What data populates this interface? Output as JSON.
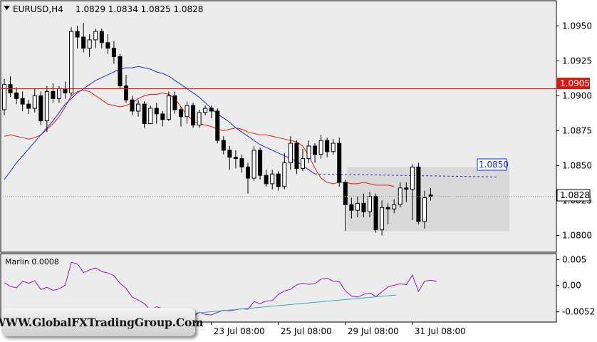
{
  "header": {
    "symbol_tf": "EURUSD,H4",
    "ohlc": "1.0829 1.0834 1.0825 1.0828"
  },
  "indicator": {
    "label": "Marlin 0.0008"
  },
  "price_badges": {
    "resistance": "1.0905",
    "target": "1.0850",
    "last": "1.0828"
  },
  "watermark": "WWW.GlobalFXTradingGroup.Com",
  "colors": {
    "chart_bg": "#ececec",
    "ma_red": "#dd1c1c",
    "ma_blue": "#1a2ec8",
    "oscillator": "#8b1fb0",
    "trendline": "#3fa7a3",
    "level_red": "#e8140c",
    "last_badge_bg": "#ffffff",
    "target_badge_border": "#1a2ec8"
  },
  "chart_data": [
    {
      "type": "candlestick",
      "title": "EURUSD,H4",
      "price_axis_ticks": [
        "1.0950",
        "1.0925",
        "1.0900",
        "1.0875",
        "1.0850",
        "1.0825",
        "1.0800"
      ],
      "time_axis_ticks": [
        "23 Jul 08:00",
        "25 Jul 08:00",
        "29 Jul 08:00",
        "31 Jul 08:00"
      ],
      "ylim": [
        1.0788,
        1.0968
      ],
      "horizontal_level": 1.0905,
      "last_price": 1.0828,
      "target_level": 1.085,
      "range_box": {
        "price_top": 1.0849,
        "price_bottom": 1.0803
      },
      "grid": false,
      "series": [
        {
          "name": "red MA",
          "color": "#dd1c1c",
          "values": [
            1.0871,
            1.0872,
            1.0871,
            1.087,
            1.0869,
            1.087,
            1.0872,
            1.0876,
            1.088,
            1.0885,
            1.0892,
            1.09,
            1.0903,
            1.0904,
            1.0903,
            1.09,
            1.0897,
            1.0894,
            1.0893,
            1.0892,
            1.0893,
            1.0895,
            1.0898,
            1.09,
            1.0901,
            1.0901,
            1.0902,
            1.0901,
            1.0898,
            1.0892,
            1.0886,
            1.0882,
            1.088,
            1.0879,
            1.0878,
            1.0876,
            1.0875,
            1.0876,
            1.0877,
            1.0876,
            1.0874,
            1.0873,
            1.0872,
            1.0872,
            1.0871,
            1.087,
            1.0869,
            1.0868,
            1.0867,
            1.0864,
            1.0857,
            1.0848,
            1.0841,
            1.0838,
            1.0837,
            1.0838,
            1.0838,
            1.0837,
            1.0837,
            1.0838,
            1.0837,
            1.0836,
            1.0836,
            1.0836,
            1.0835
          ]
        },
        {
          "name": "blue MA",
          "color": "#1a2ec8",
          "values": [
            1.084,
            1.0846,
            1.0852,
            1.0857,
            1.0862,
            1.0867,
            1.0872,
            1.0877,
            1.0882,
            1.0888,
            1.0894,
            1.0898,
            1.0902,
            1.0905,
            1.0908,
            1.0911,
            1.0913,
            1.0915,
            1.0917,
            1.0919,
            1.092,
            1.092,
            1.0921,
            1.092,
            1.0919,
            1.0917,
            1.0916,
            1.0914,
            1.0911,
            1.0908,
            1.0905,
            1.0902,
            1.0899,
            1.0895,
            1.0891,
            1.0887,
            1.0884,
            1.0881,
            1.0877,
            1.0874,
            1.0871,
            1.0868,
            1.0865,
            1.0863,
            1.0861,
            1.0859,
            1.0857,
            1.0855,
            1.0853,
            1.085,
            1.0847,
            1.0844
          ]
        }
      ],
      "candles": [
        [
          1.089,
          1.0908,
          1.0912,
          1.0886
        ],
        [
          1.0908,
          1.0902,
          1.0914,
          1.0899
        ],
        [
          1.0902,
          1.0898,
          1.0906,
          1.0894
        ],
        [
          1.0898,
          1.0894,
          1.0903,
          1.0889
        ],
        [
          1.0894,
          1.0891,
          1.0897,
          1.0887
        ],
        [
          1.0891,
          1.09,
          1.0905,
          1.0888
        ],
        [
          1.09,
          1.0882,
          1.0903,
          1.0879
        ],
        [
          1.0882,
          1.0903,
          1.0907,
          1.0874
        ],
        [
          1.0903,
          1.0898,
          1.0909,
          1.0895
        ],
        [
          1.0898,
          1.0905,
          1.0907,
          1.0895
        ],
        [
          1.0905,
          1.0902,
          1.091,
          1.0898
        ],
        [
          1.0902,
          1.0946,
          1.0949,
          1.09
        ],
        [
          1.0946,
          1.0942,
          1.095,
          1.0934
        ],
        [
          1.0942,
          1.0934,
          1.0952,
          1.0931
        ],
        [
          1.0934,
          1.094,
          1.0944,
          1.0928
        ],
        [
          1.094,
          1.0946,
          1.0948,
          1.0934
        ],
        [
          1.0946,
          1.0938,
          1.0948,
          1.0934
        ],
        [
          1.0938,
          1.0934,
          1.0944,
          1.093
        ],
        [
          1.0934,
          1.0928,
          1.0939,
          1.0923
        ],
        [
          1.0928,
          1.0907,
          1.093,
          1.0905
        ],
        [
          1.0907,
          1.0897,
          1.0915,
          1.0895
        ],
        [
          1.0897,
          1.0889,
          1.09,
          1.0886
        ],
        [
          1.0889,
          1.0894,
          1.0897,
          1.0885
        ],
        [
          1.0894,
          1.088,
          1.0896,
          1.0877
        ],
        [
          1.088,
          1.0891,
          1.0893,
          1.088
        ],
        [
          1.0891,
          1.0887,
          1.0895,
          1.088
        ],
        [
          1.0887,
          1.0883,
          1.0889,
          1.0878
        ],
        [
          1.0883,
          1.09,
          1.0903,
          1.0882
        ],
        [
          1.09,
          1.089,
          1.0903,
          1.0887
        ],
        [
          1.089,
          1.0885,
          1.0892,
          1.0878
        ],
        [
          1.0885,
          1.0893,
          1.0896,
          1.088
        ],
        [
          1.0893,
          1.0879,
          1.0895,
          1.0877
        ],
        [
          1.0879,
          1.0888,
          1.089,
          1.0877
        ],
        [
          1.0888,
          1.0891,
          1.0893,
          1.0886
        ],
        [
          1.0891,
          1.0889,
          1.0893,
          1.0884
        ],
        [
          1.0889,
          1.0868,
          1.0891,
          1.0866
        ],
        [
          1.0868,
          1.0861,
          1.0871,
          1.0858
        ],
        [
          1.0861,
          1.0856,
          1.0864,
          1.0847
        ],
        [
          1.0856,
          1.0855,
          1.0861,
          1.0848
        ],
        [
          1.0855,
          1.0849,
          1.0858,
          1.0845
        ],
        [
          1.0849,
          1.0841,
          1.0852,
          1.083
        ],
        [
          1.0841,
          1.0861,
          1.0864,
          1.0839
        ],
        [
          1.0861,
          1.0843,
          1.0863,
          1.084
        ],
        [
          1.0843,
          1.0837,
          1.0847,
          1.0835
        ],
        [
          1.0837,
          1.0844,
          1.0847,
          1.0833
        ],
        [
          1.0844,
          1.0835,
          1.0846,
          1.0832
        ],
        [
          1.0835,
          1.0852,
          1.0859,
          1.0833
        ],
        [
          1.0852,
          1.0866,
          1.0871,
          1.0847
        ],
        [
          1.0866,
          1.0848,
          1.0868,
          1.0844
        ],
        [
          1.0848,
          1.0855,
          1.0862,
          1.0846
        ],
        [
          1.0855,
          1.0864,
          1.0868,
          1.0852
        ],
        [
          1.0864,
          1.0858,
          1.0866,
          1.0852
        ],
        [
          1.0858,
          1.0868,
          1.0872,
          1.0855
        ],
        [
          1.0868,
          1.086,
          1.087,
          1.0856
        ],
        [
          1.086,
          1.0866,
          1.0869,
          1.0858
        ],
        [
          1.0866,
          1.0838,
          1.087,
          1.0835
        ],
        [
          1.0838,
          1.0822,
          1.084,
          1.0803
        ],
        [
          1.0822,
          1.0818,
          1.0827,
          1.0812
        ],
        [
          1.0818,
          1.0823,
          1.0828,
          1.0813
        ],
        [
          1.0823,
          1.0817,
          1.083,
          1.0813
        ],
        [
          1.0817,
          1.0828,
          1.0831,
          1.0813
        ],
        [
          1.0828,
          1.0804,
          1.083,
          1.0802
        ],
        [
          1.0804,
          1.082,
          1.0825,
          1.08
        ],
        [
          1.082,
          1.0819,
          1.0823,
          1.0808
        ],
        [
          1.0819,
          1.0822,
          1.0826,
          1.0816
        ],
        [
          1.0822,
          1.0834,
          1.0838,
          1.082
        ],
        [
          1.0834,
          1.0833,
          1.0838,
          1.0824
        ],
        [
          1.0833,
          1.0849,
          1.0851,
          1.0811
        ],
        [
          1.0849,
          1.081,
          1.0852,
          1.0808
        ],
        [
          1.081,
          1.0827,
          1.0832,
          1.0805
        ],
        [
          1.0829,
          1.0828,
          1.0834,
          1.0825
        ]
      ]
    },
    {
      "type": "line",
      "title": "Marlin 0.0008",
      "y_axis_ticks": [
        "0.005",
        "0.00",
        "-0.0052"
      ],
      "ylim": [
        -0.0072,
        0.0062
      ],
      "series": [
        {
          "name": "Marlin",
          "color": "#8b1fb0",
          "values": [
            0.0005,
            -0.0002,
            -0.0005,
            0.0008,
            0.0004,
            0.0009,
            -0.0008,
            -0.0004,
            -0.001,
            -0.0007,
            0.0,
            0.0045,
            0.0042,
            0.0025,
            0.003,
            0.0034,
            0.0027,
            0.0024,
            0.0019,
            0.0004,
            -0.0006,
            -0.0023,
            -0.0029,
            -0.0036,
            -0.0049,
            -0.0042,
            -0.0046,
            -0.0049,
            -0.0051,
            -0.0055,
            -0.0052,
            -0.0061,
            -0.0053,
            -0.0057,
            -0.0058,
            -0.0053,
            -0.0049,
            -0.005,
            -0.0048,
            -0.0046,
            -0.0047,
            -0.0032,
            -0.0036,
            -0.0031,
            -0.003,
            -0.0018,
            -0.0011,
            -0.0008,
            0.0001,
            0.0004,
            0.0002,
            0.0003,
            0.0012,
            0.0014,
            0.0008,
            0.0007,
            -0.0011,
            -0.0021,
            -0.0023,
            -0.0018,
            -0.0015,
            -0.0022,
            -0.0013,
            -0.0003,
            0.0,
            0.0003,
            0.0001,
            0.002,
            -0.0012,
            0.0008,
            0.001,
            0.0008
          ]
        },
        {
          "name": "trendline",
          "color": "#3fa7a3",
          "x": [
            31,
            62
          ],
          "values": [
            -0.0055,
            -0.0019
          ]
        }
      ]
    }
  ]
}
